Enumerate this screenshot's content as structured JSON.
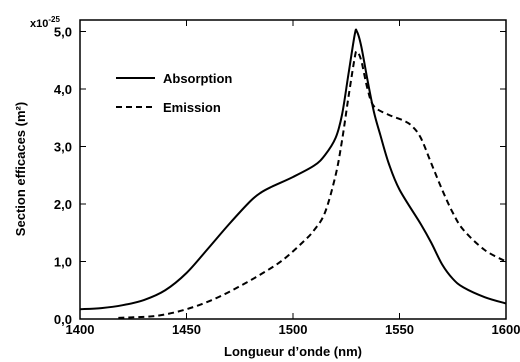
{
  "chart_data": {
    "type": "line",
    "title": "",
    "xlabel": "Longueur d’onde (nm)",
    "ylabel": "Section efficaces (m²)",
    "y_multiplier": {
      "base": "x10",
      "exponent": "-25"
    },
    "xlim": [
      1400,
      1600
    ],
    "ylim": [
      0,
      5.2
    ],
    "x_ticks": [
      {
        "value": 1400,
        "label": "1400"
      },
      {
        "value": 1450,
        "label": "1450"
      },
      {
        "value": 1500,
        "label": "1500"
      },
      {
        "value": 1550,
        "label": "1550"
      },
      {
        "value": 1600,
        "label": "1600"
      }
    ],
    "y_ticks": [
      {
        "value": 0,
        "label": "0,0"
      },
      {
        "value": 1,
        "label": "1,0"
      },
      {
        "value": 2,
        "label": "2,0"
      },
      {
        "value": 3,
        "label": "3,0"
      },
      {
        "value": 4,
        "label": "4,0"
      },
      {
        "value": 5,
        "label": "5,0"
      }
    ],
    "grid": false,
    "legend_position": "top-left",
    "series": [
      {
        "name": "Absorption",
        "style": "solid",
        "color": "#000000",
        "points": [
          [
            1400,
            0.17
          ],
          [
            1410,
            0.19
          ],
          [
            1420,
            0.24
          ],
          [
            1430,
            0.33
          ],
          [
            1440,
            0.5
          ],
          [
            1450,
            0.8
          ],
          [
            1460,
            1.22
          ],
          [
            1470,
            1.65
          ],
          [
            1480,
            2.05
          ],
          [
            1485,
            2.2
          ],
          [
            1490,
            2.3
          ],
          [
            1500,
            2.47
          ],
          [
            1510,
            2.67
          ],
          [
            1515,
            2.85
          ],
          [
            1520,
            3.15
          ],
          [
            1523,
            3.55
          ],
          [
            1526,
            4.25
          ],
          [
            1529,
            4.95
          ],
          [
            1530,
            5.0
          ],
          [
            1532,
            4.75
          ],
          [
            1535,
            4.15
          ],
          [
            1538,
            3.6
          ],
          [
            1541,
            3.2
          ],
          [
            1545,
            2.7
          ],
          [
            1550,
            2.25
          ],
          [
            1560,
            1.65
          ],
          [
            1565,
            1.32
          ],
          [
            1570,
            0.95
          ],
          [
            1575,
            0.7
          ],
          [
            1580,
            0.55
          ],
          [
            1590,
            0.38
          ],
          [
            1600,
            0.27
          ]
        ]
      },
      {
        "name": "Emission",
        "style": "dashed",
        "color": "#000000",
        "points": [
          [
            1418,
            0.02
          ],
          [
            1425,
            0.03
          ],
          [
            1435,
            0.05
          ],
          [
            1445,
            0.12
          ],
          [
            1455,
            0.23
          ],
          [
            1465,
            0.38
          ],
          [
            1475,
            0.57
          ],
          [
            1485,
            0.78
          ],
          [
            1495,
            1.02
          ],
          [
            1505,
            1.35
          ],
          [
            1510,
            1.55
          ],
          [
            1515,
            1.85
          ],
          [
            1520,
            2.5
          ],
          [
            1523,
            3.1
          ],
          [
            1526,
            3.85
          ],
          [
            1529,
            4.55
          ],
          [
            1530,
            4.65
          ],
          [
            1532,
            4.5
          ],
          [
            1535,
            4.0
          ],
          [
            1538,
            3.7
          ],
          [
            1545,
            3.55
          ],
          [
            1552,
            3.45
          ],
          [
            1556,
            3.35
          ],
          [
            1560,
            3.15
          ],
          [
            1565,
            2.7
          ],
          [
            1570,
            2.25
          ],
          [
            1575,
            1.85
          ],
          [
            1580,
            1.55
          ],
          [
            1590,
            1.2
          ],
          [
            1600,
            1.0
          ]
        ]
      }
    ]
  }
}
